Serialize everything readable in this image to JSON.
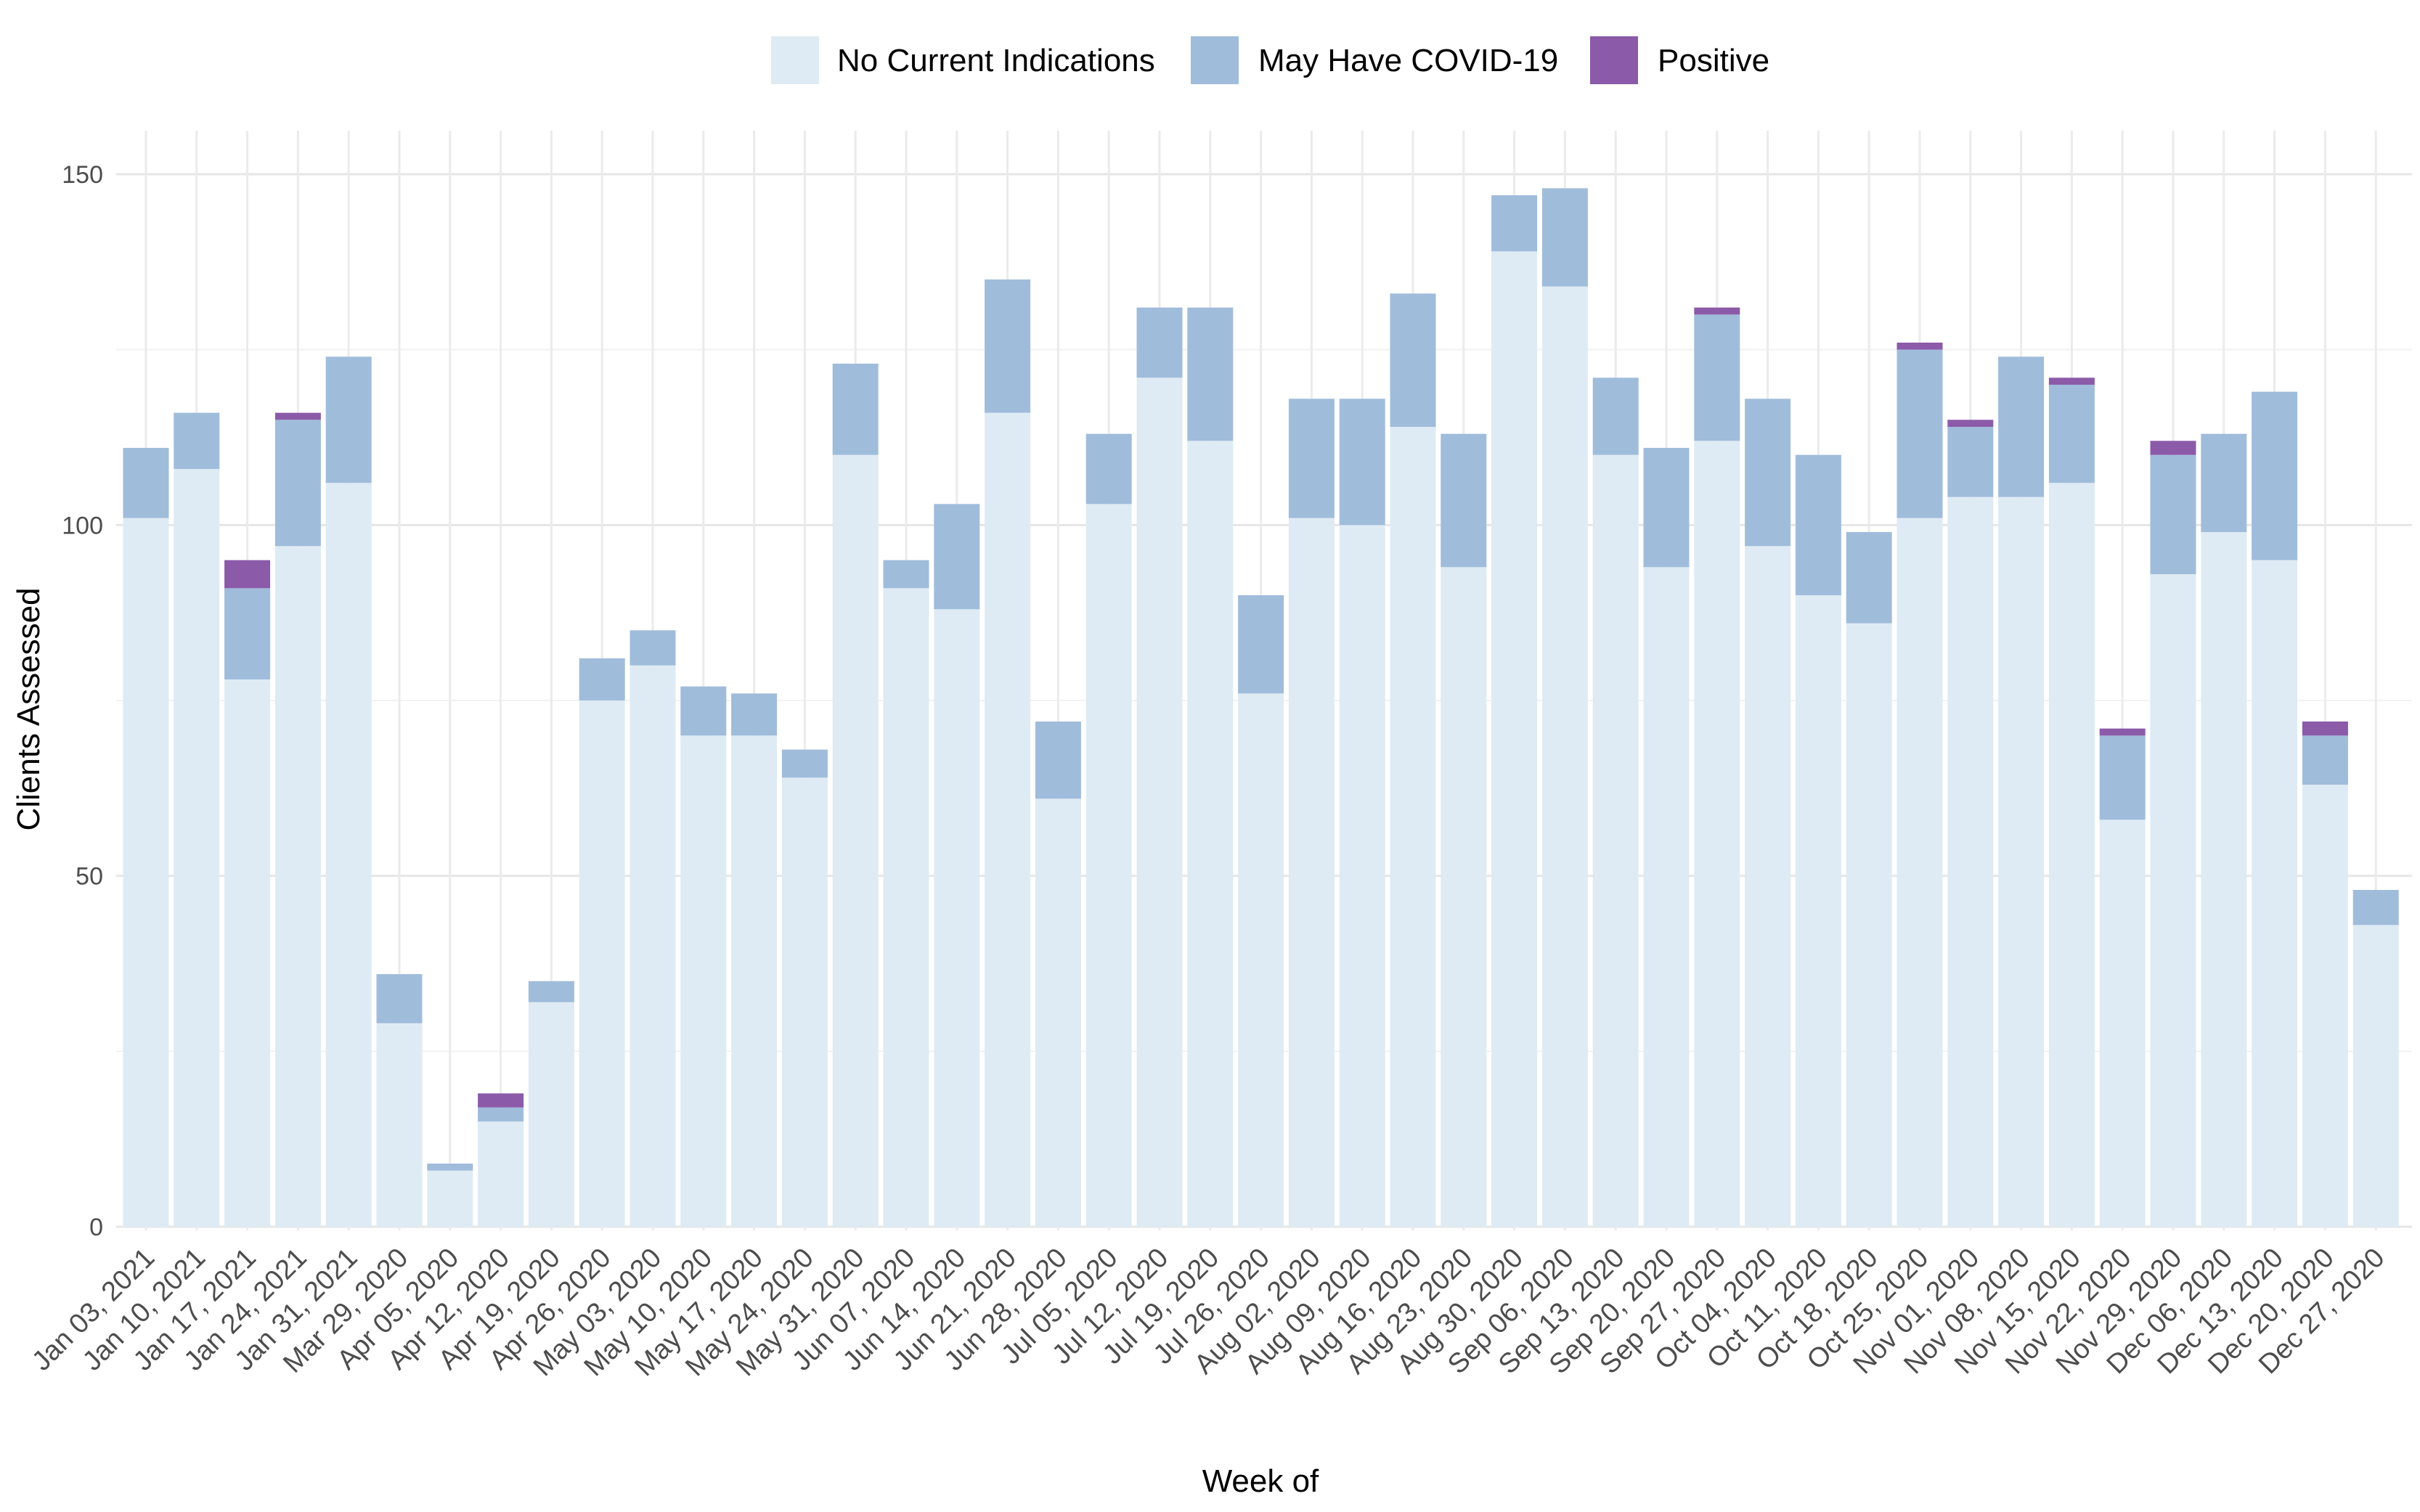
{
  "chart_data": {
    "type": "bar",
    "stacked": true,
    "xlabel": "Week of",
    "ylabel": "Clients Assessed",
    "ylim": [
      0,
      155
    ],
    "yticks": [
      0,
      50,
      100,
      150
    ],
    "grid": true,
    "legend_position": "top",
    "categories": [
      "Jan 03, 2021",
      "Jan 10, 2021",
      "Jan 17, 2021",
      "Jan 24, 2021",
      "Jan 31, 2021",
      "Mar 29, 2020",
      "Apr 05, 2020",
      "Apr 12, 2020",
      "Apr 19, 2020",
      "Apr 26, 2020",
      "May 03, 2020",
      "May 10, 2020",
      "May 17, 2020",
      "May 24, 2020",
      "May 31, 2020",
      "Jun 07, 2020",
      "Jun 14, 2020",
      "Jun 21, 2020",
      "Jun 28, 2020",
      "Jul 05, 2020",
      "Jul 12, 2020",
      "Jul 19, 2020",
      "Jul 26, 2020",
      "Aug 02, 2020",
      "Aug 09, 2020",
      "Aug 16, 2020",
      "Aug 23, 2020",
      "Aug 30, 2020",
      "Sep 06, 2020",
      "Sep 13, 2020",
      "Sep 20, 2020",
      "Sep 27, 2020",
      "Oct 04, 2020",
      "Oct 11, 2020",
      "Oct 18, 2020",
      "Oct 25, 2020",
      "Nov 01, 2020",
      "Nov 08, 2020",
      "Nov 15, 2020",
      "Nov 22, 2020",
      "Nov 29, 2020",
      "Dec 06, 2020",
      "Dec 13, 2020",
      "Dec 20, 2020",
      "Dec 27, 2020"
    ],
    "series": [
      {
        "name": "No Current Indications",
        "color": "#deebf4",
        "values": [
          101,
          108,
          78,
          97,
          106,
          29,
          8,
          15,
          32,
          75,
          80,
          70,
          70,
          64,
          110,
          91,
          88,
          116,
          61,
          103,
          121,
          112,
          76,
          101,
          100,
          114,
          94,
          139,
          134,
          110,
          94,
          112,
          97,
          90,
          86,
          101,
          104,
          104,
          106,
          58,
          93,
          99,
          95,
          63,
          43
        ]
      },
      {
        "name": "May Have COVID-19",
        "color": "#a0bcdb",
        "values": [
          10,
          8,
          13,
          18,
          18,
          7,
          1,
          2,
          3,
          6,
          5,
          7,
          6,
          4,
          13,
          4,
          15,
          19,
          11,
          10,
          10,
          19,
          14,
          17,
          18,
          19,
          19,
          8,
          14,
          11,
          17,
          18,
          21,
          20,
          13,
          24,
          10,
          20,
          14,
          12,
          17,
          14,
          24,
          7,
          5
        ]
      },
      {
        "name": "Positive",
        "color": "#8b5aa8",
        "values": [
          0,
          0,
          4,
          1,
          0,
          0,
          0,
          2,
          0,
          0,
          0,
          0,
          0,
          0,
          0,
          0,
          0,
          0,
          0,
          0,
          0,
          0,
          0,
          0,
          0,
          0,
          0,
          0,
          0,
          0,
          0,
          1,
          0,
          0,
          0,
          1,
          1,
          0,
          1,
          1,
          2,
          0,
          0,
          2,
          0
        ]
      }
    ]
  }
}
